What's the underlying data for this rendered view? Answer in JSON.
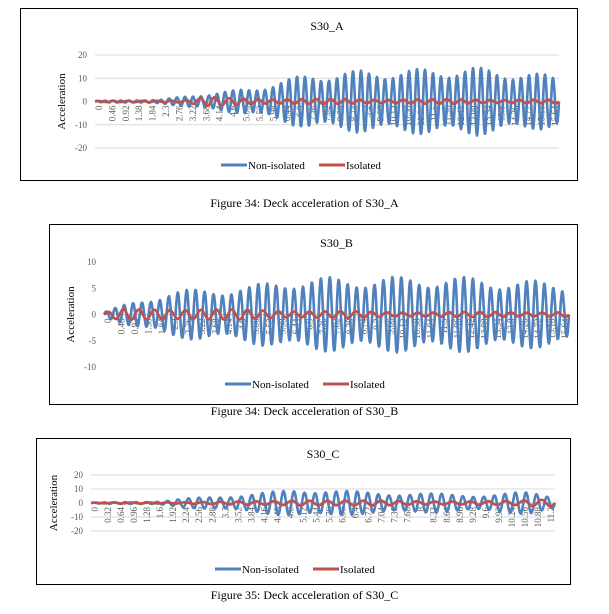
{
  "colors": {
    "non_isolated": "#4f81bd",
    "isolated": "#c0504d",
    "grid": "#d9d9d9",
    "axis": "#bfbfbf"
  },
  "captions": [
    "Figure 34: Deck acceleration of  S30_A",
    "Figure 34: Deck acceleration of  S30_B",
    "Figure 35: Deck acceleration of  S30_C"
  ],
  "chart_data": [
    {
      "type": "line",
      "title": "S30_A",
      "xlabel": "",
      "ylabel": "Acceleration",
      "ylim": [
        -20,
        20
      ],
      "yticks": [
        -20,
        -10,
        0,
        10,
        20
      ],
      "grid": true,
      "legend": "bottom",
      "x_tick_labels": [
        "0",
        "0.46",
        "0.92",
        "1.38",
        "1.84",
        "2.3",
        "2.76",
        "3.22",
        "3.68",
        "4.14",
        "4.6",
        "5.06",
        "5.52",
        "5.98",
        "6.44",
        "6.9",
        "7.36",
        "7.82",
        "8.28",
        "8.74",
        "9.2",
        "9.66",
        "10.12",
        "10.58",
        "11.04",
        "11.5",
        "11.96",
        "12.42",
        "12.88",
        "13.34",
        "13.8",
        "14.26",
        "14.72",
        "15.18",
        "15.64"
      ],
      "x_range": [
        0,
        16.0
      ],
      "series": [
        {
          "name": "Non-isolated",
          "color": "#4f81bd",
          "envelope": {
            "x": [
              0,
              2.3,
              3.2,
              4.6,
              5.5,
              6.4,
              7.4,
              9.2,
              11.0,
              12.9,
              14.7,
              16.0
            ],
            "amp": [
              0.3,
              0.8,
              2.5,
              4.5,
              6,
              9,
              12,
              13.5,
              14,
              15,
              13,
              11
            ]
          },
          "cycles": 58
        },
        {
          "name": "Isolated",
          "color": "#c0504d",
          "envelope": {
            "x": [
              0,
              3.0,
              3.9,
              4.6,
              6.4,
              9.2,
              12.0,
              16.0
            ],
            "amp": [
              0.2,
              0.5,
              2,
              1.5,
              1.2,
              1.0,
              1.0,
              0.8
            ]
          },
          "cycles": 32
        }
      ]
    },
    {
      "type": "line",
      "title": "S30_B",
      "xlabel": "",
      "ylabel": "Acceleration",
      "ylim": [
        -10,
        10
      ],
      "yticks": [
        -10,
        -5,
        0,
        5,
        10
      ],
      "grid": false,
      "legend": "bottom",
      "x_tick_labels": [
        "0",
        "0.46",
        "0.92",
        "1.38",
        "1.84",
        "2.3",
        "2.76",
        "3.22",
        "3.68",
        "4.14",
        "4.6",
        "5.06",
        "5.52",
        "5.98",
        "6.44",
        "6.9",
        "7.36",
        "7.82",
        "8.28",
        "8.74",
        "9.2",
        "9.66",
        "10.12",
        "10.58",
        "11.04",
        "11.5",
        "11.96",
        "12.42",
        "12.88",
        "13.34",
        "13.8",
        "14.26",
        "14.72",
        "15.18",
        "15.64"
      ],
      "x_range": [
        0,
        16.0
      ],
      "series": [
        {
          "name": "Non-isolated",
          "color": "#4f81bd",
          "envelope": {
            "x": [
              0,
              0.5,
              1.4,
              2.3,
              3.7,
              5.0,
              6.4,
              9.0,
              12.0,
              14.7,
              16.0
            ],
            "amp": [
              0.5,
              1.5,
              3,
              4.5,
              5,
              5.5,
              7,
              7.2,
              7.3,
              6.5,
              6
            ]
          },
          "cycles": 52
        },
        {
          "name": "Isolated",
          "color": "#c0504d",
          "envelope": {
            "x": [
              0,
              0.5,
              2.0,
              4.0,
              6.0,
              10.0,
              16.0
            ],
            "amp": [
              0.3,
              1.0,
              1.2,
              1.0,
              0.8,
              0.5,
              0.5
            ]
          },
          "cycles": 30
        }
      ]
    },
    {
      "type": "line",
      "title": "S30_C",
      "xlabel": "",
      "ylabel": "Acceleration",
      "ylim": [
        -20,
        20
      ],
      "yticks": [
        -20,
        -10,
        0,
        10,
        20
      ],
      "grid": true,
      "legend": "bottom",
      "x_tick_labels": [
        "0",
        "0.32",
        "0.64",
        "0.96",
        "1.28",
        "1.6",
        "1.92",
        "2.24",
        "2.56",
        "2.88",
        "3.2",
        "3.52",
        "3.84",
        "4.16",
        "4.48",
        "4.8",
        "5.12",
        "5.44",
        "5.76",
        "6.08",
        "6.4",
        "6.72",
        "7.04",
        "7.36",
        "7.68",
        "8",
        "8.32",
        "8.64",
        "8.96",
        "9.28",
        "9.6",
        "9.92",
        "10.24",
        "10.56",
        "10.88",
        "11.2"
      ],
      "x_range": [
        0,
        11.5
      ],
      "series": [
        {
          "name": "Non-isolated",
          "color": "#4f81bd",
          "envelope": {
            "x": [
              0,
              1.6,
              2.24,
              3.2,
              4.48,
              5.1,
              5.8,
              6.7,
              8.3,
              9.6,
              10.9,
              11.5
            ],
            "amp": [
              0.3,
              1,
              3,
              5,
              8,
              10,
              10,
              8,
              7,
              6,
              8,
              5
            ]
          },
          "cycles": 44
        },
        {
          "name": "Isolated",
          "color": "#c0504d",
          "envelope": {
            "x": [
              0,
              1.9,
              4.5,
              5.2,
              6.0,
              8.0,
              10.5,
              11.5
            ],
            "amp": [
              0.2,
              0.5,
              1.5,
              2.5,
              2.0,
              1.5,
              1.5,
              3
            ]
          },
          "cycles": 26
        }
      ]
    }
  ]
}
